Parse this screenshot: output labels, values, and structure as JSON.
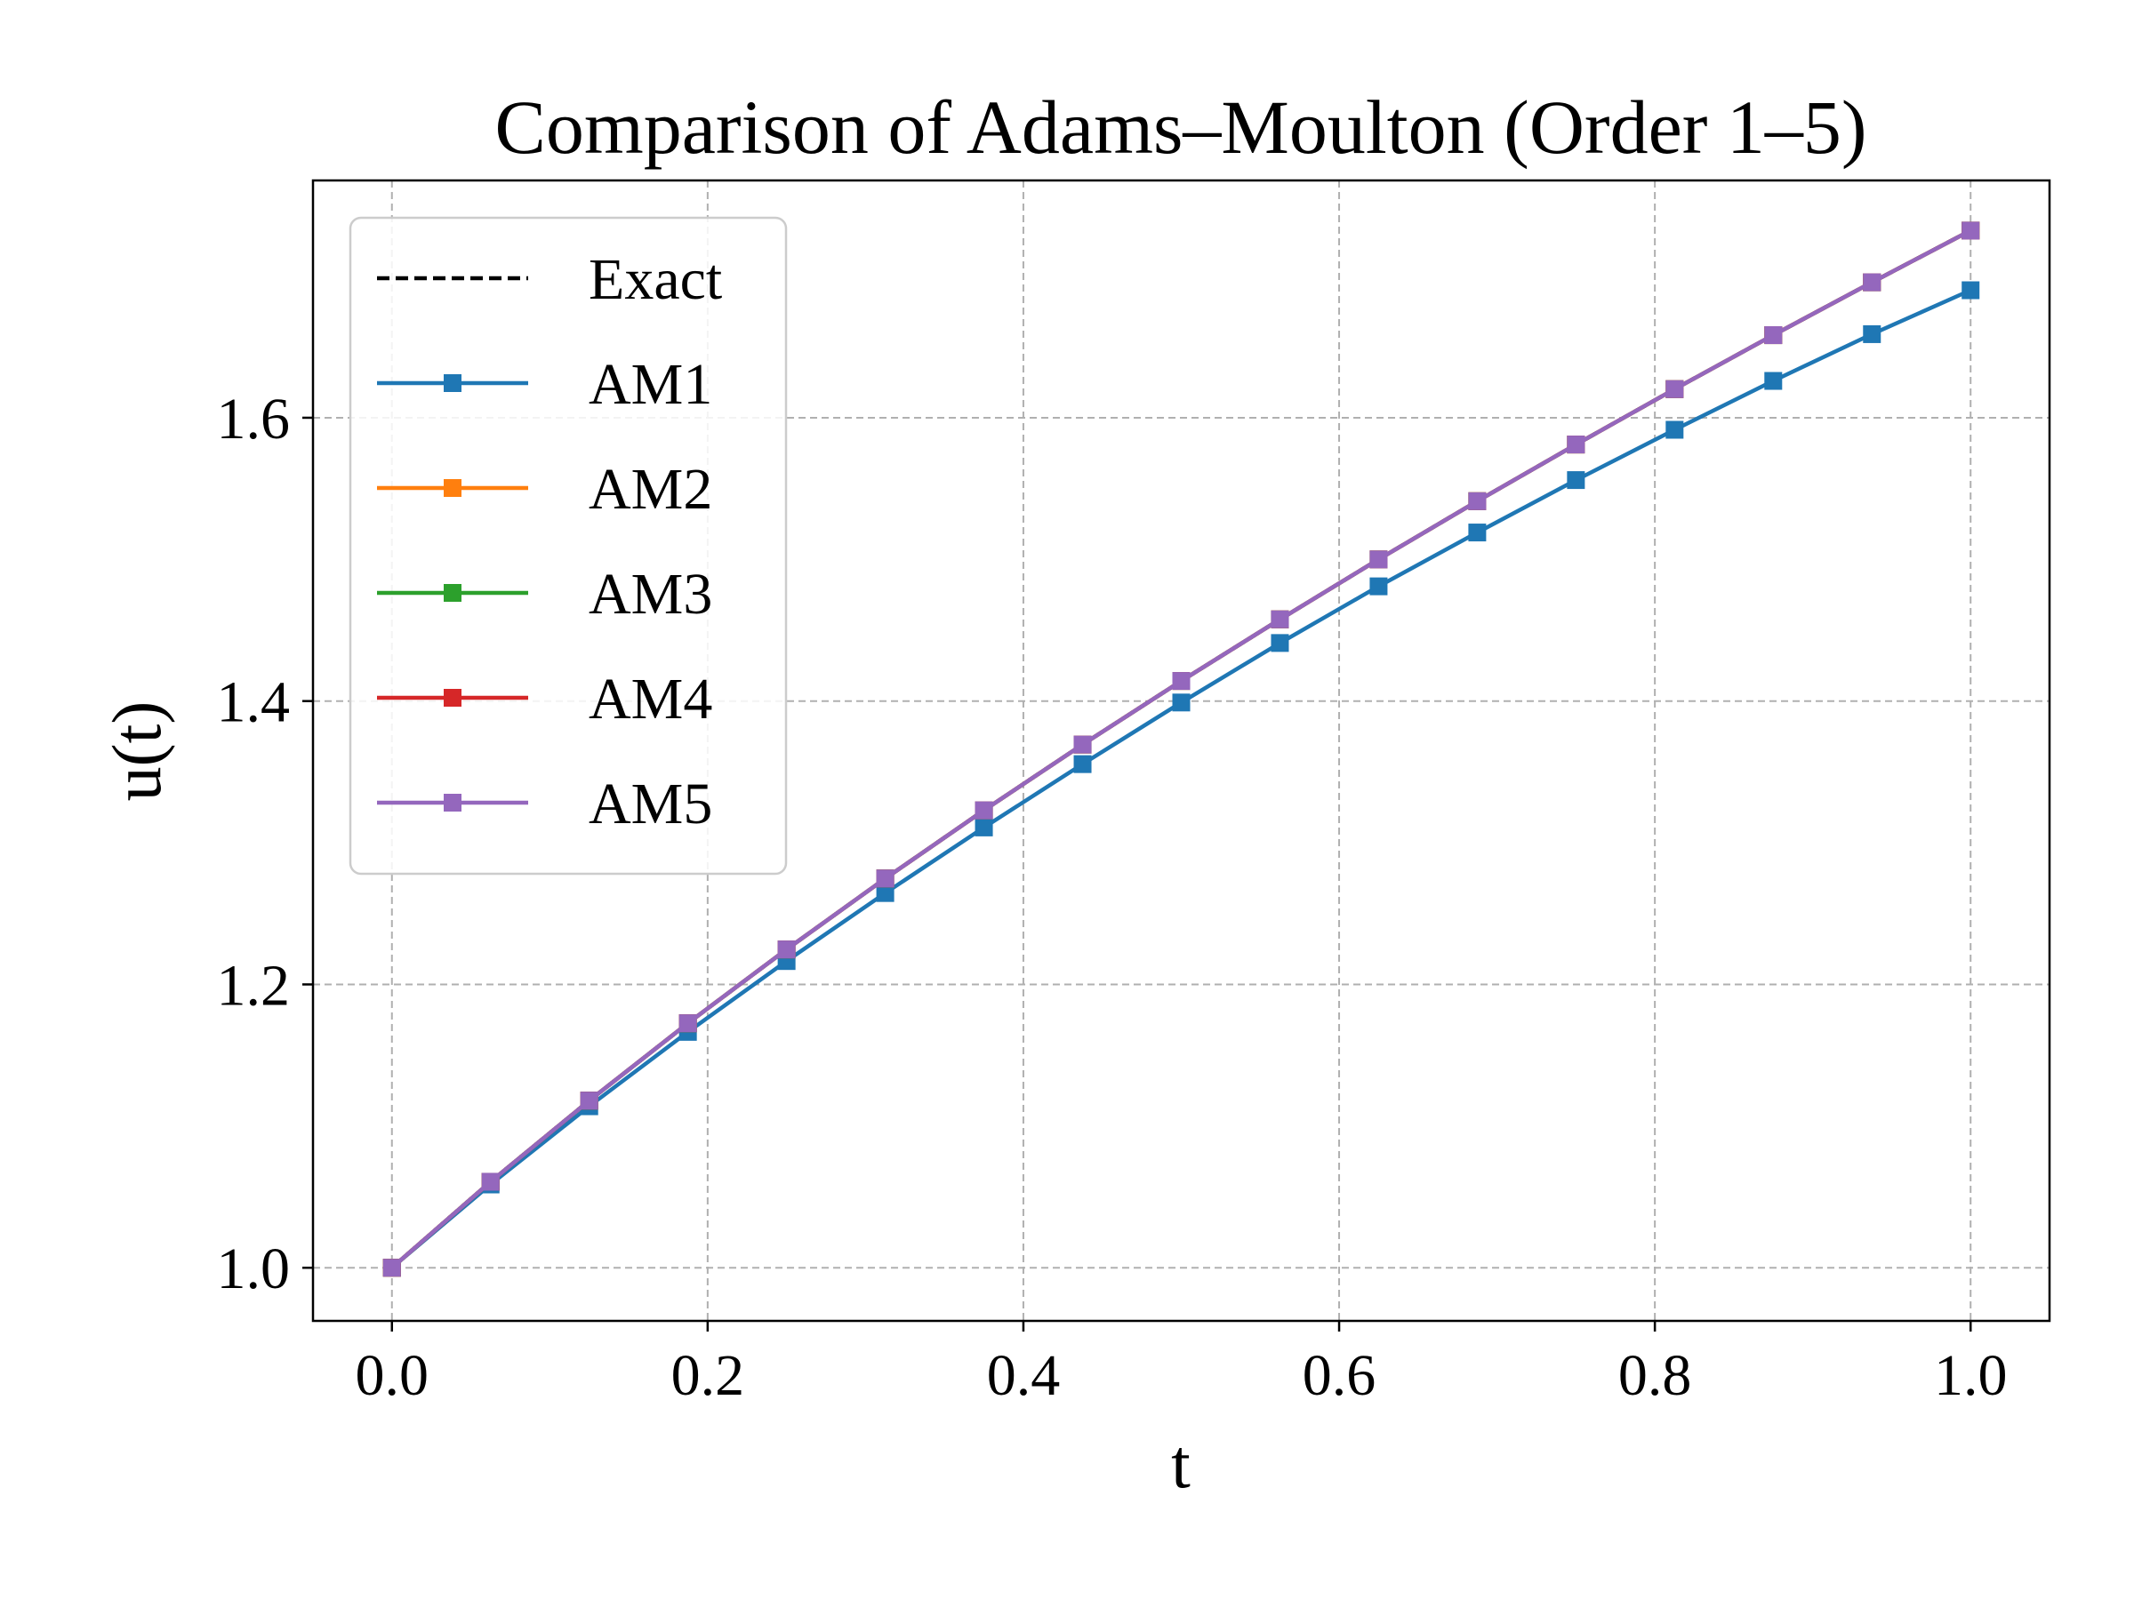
{
  "chart_data": {
    "type": "line",
    "title": "Comparison of Adams–Moulton (Order 1–5)",
    "xlabel": "t",
    "ylabel": "u(t)",
    "xlim": [
      -0.05,
      1.05
    ],
    "ylim": [
      0.9625,
      1.7675
    ],
    "xticks": [
      "0.0",
      "0.2",
      "0.4",
      "0.6",
      "0.8",
      "1.0"
    ],
    "yticks": [
      "1.0",
      "1.2",
      "1.4",
      "1.6"
    ],
    "grid": true,
    "legend_position": "upper-left",
    "x": [
      0.0,
      0.0625,
      0.125,
      0.1875,
      0.25,
      0.3125,
      0.375,
      0.4375,
      0.5,
      0.5625,
      0.625,
      0.6875,
      0.75,
      0.8125,
      0.875,
      0.9375,
      1.0
    ],
    "series": [
      {
        "name": "Exact",
        "color": "#000000",
        "style": "dashed",
        "marker": "none",
        "values": [
          1.0,
          1.0607,
          1.118,
          1.1726,
          1.2247,
          1.2748,
          1.3229,
          1.3693,
          1.4142,
          1.4577,
          1.5,
          1.5411,
          1.5811,
          1.6202,
          1.6583,
          1.6956,
          1.7321
        ]
      },
      {
        "name": "AM1",
        "color": "#1f77b4",
        "style": "solid",
        "marker": "square",
        "values": [
          1.0,
          1.0588,
          1.114,
          1.1665,
          1.2165,
          1.2645,
          1.3108,
          1.3555,
          1.399,
          1.441,
          1.481,
          1.519,
          1.556,
          1.5915,
          1.626,
          1.659,
          1.69
        ]
      },
      {
        "name": "AM2",
        "color": "#ff7f0e",
        "style": "solid",
        "marker": "square",
        "values": [
          1.0,
          1.0607,
          1.118,
          1.1726,
          1.2247,
          1.2748,
          1.3229,
          1.3693,
          1.4142,
          1.4577,
          1.5,
          1.5411,
          1.5811,
          1.6202,
          1.6583,
          1.6956,
          1.7321
        ]
      },
      {
        "name": "AM3",
        "color": "#2ca02c",
        "style": "solid",
        "marker": "square",
        "values": [
          1.0,
          1.0607,
          1.118,
          1.1726,
          1.2247,
          1.2748,
          1.3229,
          1.3693,
          1.4142,
          1.4577,
          1.5,
          1.5411,
          1.5811,
          1.6202,
          1.6583,
          1.6956,
          1.7321
        ]
      },
      {
        "name": "AM4",
        "color": "#d62728",
        "style": "solid",
        "marker": "square",
        "values": [
          1.0,
          1.0607,
          1.118,
          1.1726,
          1.2247,
          1.2748,
          1.3229,
          1.3693,
          1.4142,
          1.4577,
          1.5,
          1.5411,
          1.5811,
          1.6202,
          1.6583,
          1.6956,
          1.7321
        ]
      },
      {
        "name": "AM5",
        "color": "#9467bd",
        "style": "solid",
        "marker": "square",
        "values": [
          1.0,
          1.0607,
          1.118,
          1.1726,
          1.2247,
          1.2748,
          1.3229,
          1.3693,
          1.4142,
          1.4577,
          1.5,
          1.5411,
          1.5811,
          1.6202,
          1.6583,
          1.6956,
          1.7321
        ]
      }
    ]
  }
}
